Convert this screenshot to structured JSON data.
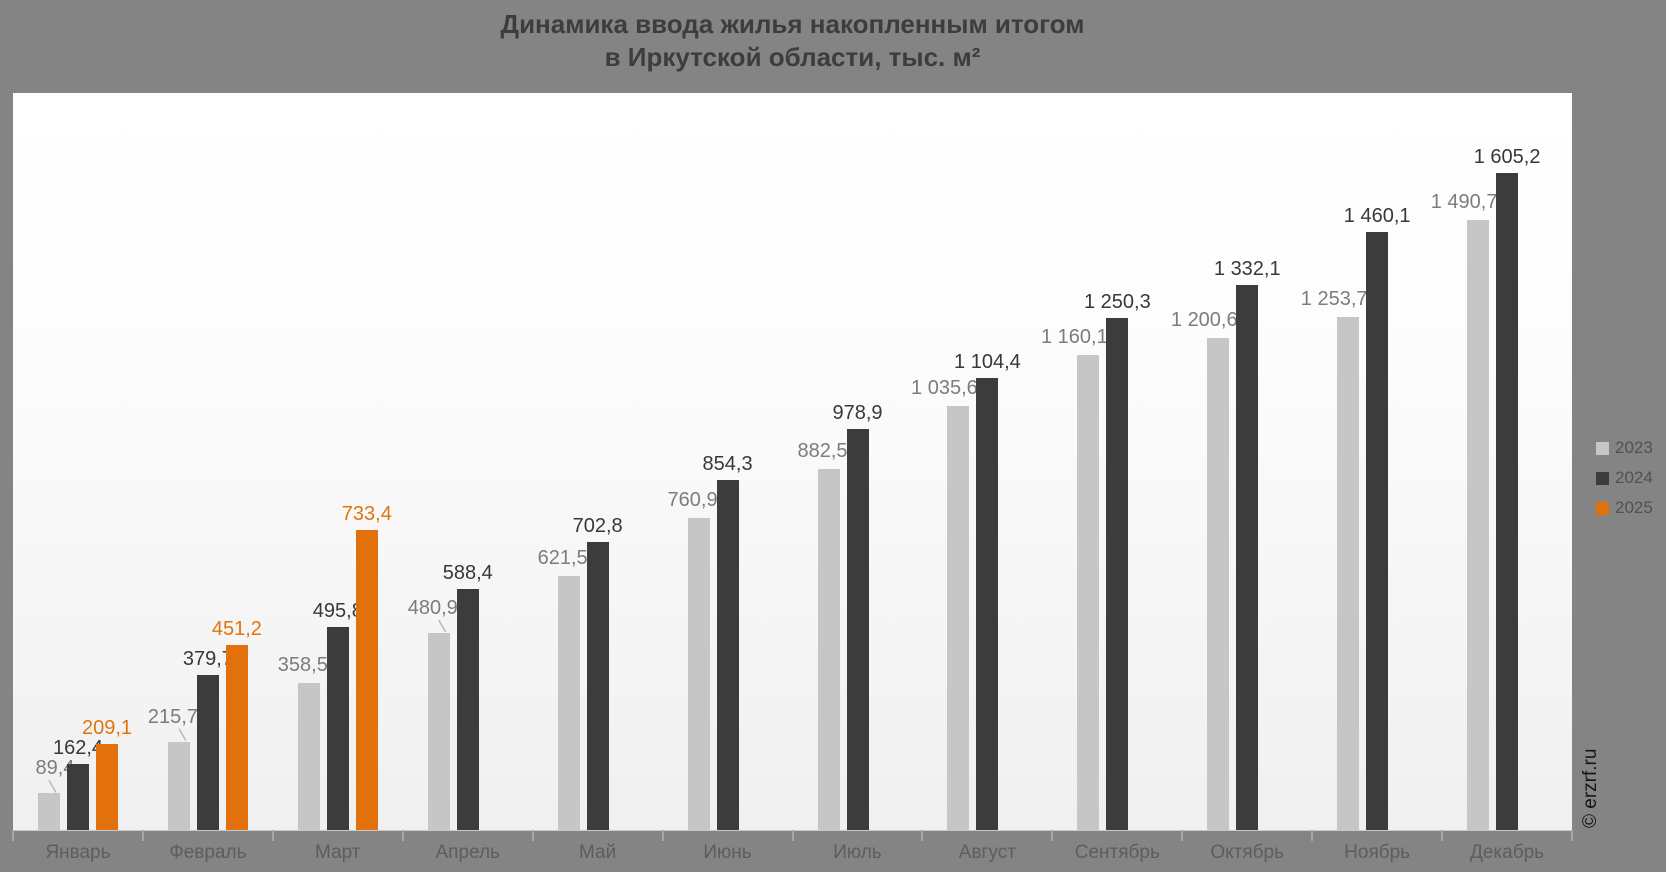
{
  "title": {
    "line1": "Динамика ввода жилья накопленным итогом",
    "line2": "в Иркутской области, тыс. м²"
  },
  "watermark": "© erzrf.ru",
  "colors": {
    "background": "#848484",
    "panel_top": "#ffffff",
    "panel_bottom": "#f0f0f0",
    "series_2023": "#c6c6c6",
    "series_2024": "#3c3c3c",
    "series_2025": "#e2700d",
    "value_label_2023": "#7c7c7c",
    "value_label_2024": "#383838",
    "value_label_2025": "#e2740e",
    "month_label": "#5d5d5d",
    "legend_text": "#515151",
    "title_text": "#3d3d3d",
    "tick": "#a6a6a6",
    "connector": "#b8b8b8",
    "watermark_text": "#161616"
  },
  "legend": {
    "items": [
      {
        "label": "2023",
        "color": "#c6c6c6"
      },
      {
        "label": "2024",
        "color": "#3c3c3c"
      },
      {
        "label": "2025",
        "color": "#e2700d"
      }
    ]
  },
  "chart_data": {
    "type": "bar",
    "title": "Динамика ввода жилья накопленным итогом в Иркутской области, тыс. м²",
    "xlabel": "",
    "ylabel": "тыс. м²",
    "ylim": [
      0,
      1800
    ],
    "grid": false,
    "legend_position": "right",
    "value_labels": true,
    "categories": [
      "Январь",
      "Февраль",
      "Март",
      "Апрель",
      "Май",
      "Июнь",
      "Июль",
      "Август",
      "Сентябрь",
      "Октябрь",
      "Ноябрь",
      "Декабрь"
    ],
    "series": [
      {
        "name": "2023",
        "color": "#c6c6c6",
        "values": [
          89.4,
          215.7,
          358.5,
          480.9,
          621.5,
          760.9,
          882.5,
          1035.6,
          1160.1,
          1200.6,
          1253.7,
          1490.7
        ],
        "labels": [
          "89,4",
          "215,7",
          "358,5",
          "480,9",
          "621,5",
          "760,9",
          "882,5",
          "1 035,6",
          "1 160,1",
          "1 200,6",
          "1 253,7",
          "1 490,7"
        ]
      },
      {
        "name": "2024",
        "color": "#3c3c3c",
        "values": [
          162.4,
          379.7,
          495.8,
          588.4,
          702.8,
          854.3,
          978.9,
          1104.4,
          1250.3,
          1332.1,
          1460.1,
          1605.2
        ],
        "labels": [
          "162,4",
          "379,7",
          "495,8",
          "588,4",
          "702,8",
          "854,3",
          "978,9",
          "1 104,4",
          "1 250,3",
          "1 332,1",
          "1 460,1",
          "1 605,2"
        ]
      },
      {
        "name": "2025",
        "color": "#e2700d",
        "values": [
          209.1,
          451.2,
          733.4,
          null,
          null,
          null,
          null,
          null,
          null,
          null,
          null,
          null
        ],
        "labels": [
          "209,1",
          "451,2",
          "733,4"
        ]
      }
    ],
    "label_connector_indices": [
      0,
      1,
      3
    ]
  }
}
